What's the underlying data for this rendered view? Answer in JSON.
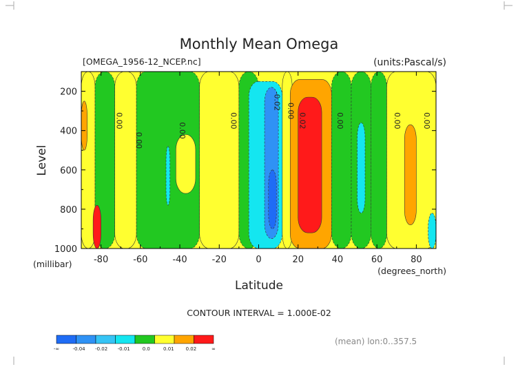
{
  "chart_data": {
    "type": "heatmap",
    "title": "Monthly Mean Omega",
    "file_label": "[OMEGA_1956-12_NCEP.nc]",
    "units_label": "(units:Pascal/s)",
    "xlabel": "Latitude",
    "ylabel": "Level",
    "x_unit_label": "(degrees_north)",
    "y_unit_label": "(millibar)",
    "xlim": [
      -90,
      90
    ],
    "ylim": [
      1000,
      100
    ],
    "x_ticks": [
      -80,
      -60,
      -40,
      -20,
      0,
      20,
      40,
      60,
      80
    ],
    "x_tick_labels": [
      "-80",
      "-60",
      "-40",
      "-20",
      "0",
      "20",
      "40",
      "60",
      "80"
    ],
    "y_ticks": [
      200,
      400,
      600,
      800,
      1000
    ],
    "y_tick_labels": [
      "200",
      "400",
      "600",
      "800",
      "1000"
    ],
    "contour_interval_text": "CONTOUR INTERVAL = 1.000E-02",
    "mean_text": "(mean) lon:0..357.5",
    "colorbar": {
      "colors": [
        "#1f6cf5",
        "#2f92f5",
        "#36c4f5",
        "#14e6f0",
        "#22c821",
        "#ffff30",
        "#ffa500",
        "#ff1a1a"
      ],
      "labels": [
        "-∞",
        "-0.04",
        "-0.02",
        "-0.01",
        "0.0",
        "0.01",
        "0.02",
        "∞"
      ]
    },
    "value_bins": [
      {
        "range": "< -0.03",
        "color": "#1f6cf5"
      },
      {
        "range": "-0.03 to -0.02",
        "color": "#2f92f5"
      },
      {
        "range": "-0.02 to -0.01",
        "color": "#14e6f0"
      },
      {
        "range": "-0.01 to 0.00",
        "color": "#22c821"
      },
      {
        "range": "0.00 to 0.01",
        "color": "#ffff30"
      },
      {
        "range": "0.01 to 0.02",
        "color": "#ffa500"
      },
      {
        "range": "> 0.02",
        "color": "#ff1a1a"
      }
    ],
    "regions": [
      {
        "lat": [
          -90,
          -83
        ],
        "level": [
          100,
          1000
        ],
        "value_range": "0.00 to 0.01"
      },
      {
        "lat": [
          -90,
          -87
        ],
        "level": [
          250,
          500
        ],
        "value_range": "0.01 to 0.02"
      },
      {
        "lat": [
          -83,
          -73
        ],
        "level": [
          100,
          1000
        ],
        "value_range": "-0.01 to 0.00"
      },
      {
        "lat": [
          -84,
          -80
        ],
        "level": [
          780,
          1000
        ],
        "value_range": "> 0.02"
      },
      {
        "lat": [
          -73,
          -62
        ],
        "level": [
          100,
          1000
        ],
        "value_range": "0.00 to 0.01"
      },
      {
        "lat": [
          -62,
          -30
        ],
        "level": [
          100,
          1000
        ],
        "value_range": "-0.01 to 0.00"
      },
      {
        "lat": [
          -47,
          -45
        ],
        "level": [
          480,
          780
        ],
        "value_range": "-0.02 to -0.01"
      },
      {
        "lat": [
          -42,
          -32
        ],
        "level": [
          420,
          720
        ],
        "value_range": "0.00 to 0.01"
      },
      {
        "lat": [
          -30,
          -10
        ],
        "level": [
          100,
          1000
        ],
        "value_range": "0.00 to 0.01"
      },
      {
        "lat": [
          -10,
          0
        ],
        "level": [
          100,
          1000
        ],
        "value_range": "-0.01 to 0.00"
      },
      {
        "lat": [
          -5,
          12
        ],
        "level": [
          150,
          1000
        ],
        "value_range": "-0.02 to -0.01"
      },
      {
        "lat": [
          3,
          10
        ],
        "level": [
          180,
          950
        ],
        "value_range": "-0.03 to -0.02"
      },
      {
        "lat": [
          5,
          9
        ],
        "level": [
          600,
          900
        ],
        "value_range": "< -0.03"
      },
      {
        "lat": [
          12,
          17
        ],
        "level": [
          100,
          1000
        ],
        "value_range": "0.00 to 0.01"
      },
      {
        "lat": [
          16,
          37
        ],
        "level": [
          140,
          1000
        ],
        "value_range": "0.01 to 0.02"
      },
      {
        "lat": [
          20,
          32
        ],
        "level": [
          230,
          920
        ],
        "value_range": "> 0.02"
      },
      {
        "lat": [
          37,
          47
        ],
        "level": [
          100,
          1000
        ],
        "value_range": "-0.01 to 0.00"
      },
      {
        "lat": [
          47,
          57
        ],
        "level": [
          100,
          1000
        ],
        "value_range": "-0.01 to 0.00"
      },
      {
        "lat": [
          50,
          54
        ],
        "level": [
          360,
          820
        ],
        "value_range": "-0.02 to -0.01"
      },
      {
        "lat": [
          57,
          65
        ],
        "level": [
          100,
          1000
        ],
        "value_range": "-0.01 to 0.00"
      },
      {
        "lat": [
          65,
          90
        ],
        "level": [
          100,
          1000
        ],
        "value_range": "0.00 to 0.01"
      },
      {
        "lat": [
          74,
          80
        ],
        "level": [
          370,
          880
        ],
        "value_range": "0.01 to 0.02"
      },
      {
        "lat": [
          86,
          90
        ],
        "level": [
          820,
          1000
        ],
        "value_range": "-0.02 to -0.01"
      }
    ],
    "contour_labels": [
      {
        "text": "0.00",
        "lat": -72,
        "level": 350
      },
      {
        "text": "0.00",
        "lat": -62,
        "level": 450
      },
      {
        "text": "0.00",
        "lat": -40,
        "level": 400
      },
      {
        "text": "0.00",
        "lat": -14,
        "level": 350
      },
      {
        "text": "-0.02",
        "lat": 8,
        "level": 250
      },
      {
        "text": "0.00",
        "lat": 15,
        "level": 300
      },
      {
        "text": "0.02",
        "lat": 21,
        "level": 350
      },
      {
        "text": "0.00",
        "lat": 40,
        "level": 350
      },
      {
        "text": "0.00",
        "lat": 69,
        "level": 350
      },
      {
        "text": "0.00",
        "lat": 84,
        "level": 350
      }
    ]
  }
}
